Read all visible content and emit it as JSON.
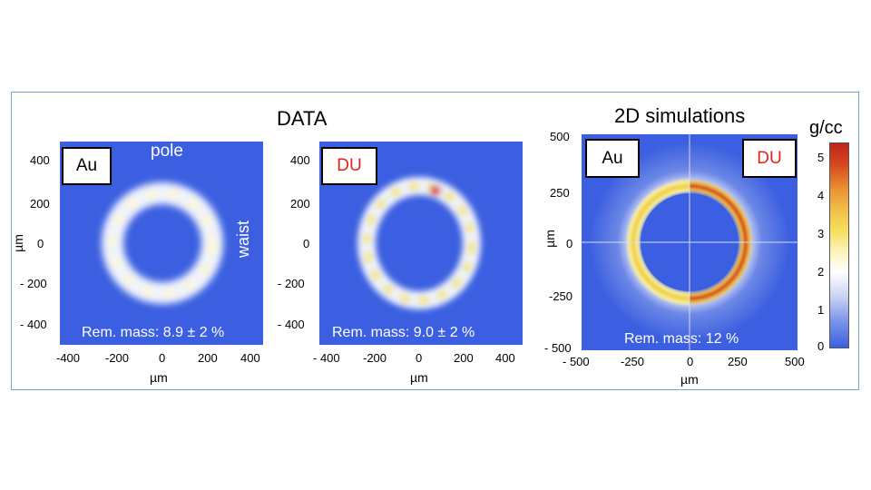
{
  "titles": {
    "data": "DATA",
    "sim": "2D simulations",
    "colorbar_unit": "g/cc"
  },
  "axis_unit": "µm",
  "panel1": {
    "material": "Au",
    "top_note": "pole",
    "side_note": "waist",
    "rem_mass": "Rem. mass: 8.9 ± 2 %",
    "y_ticks": [
      "400",
      "200",
      "0",
      "- 200",
      "- 400"
    ],
    "x_ticks": [
      "-400",
      "-200",
      "0",
      "200",
      "400"
    ]
  },
  "panel2": {
    "material": "DU",
    "rem_mass": "Rem. mass: 9.0 ± 2 %",
    "y_ticks": [
      "400",
      "200",
      "0",
      "- 200",
      "- 400"
    ],
    "x_ticks": [
      "- 400",
      "-200",
      "0",
      "200",
      "400"
    ]
  },
  "panel3": {
    "left_material": "Au",
    "right_material": "DU",
    "rem_mass": "Rem. mass: 12 %",
    "y_ticks": [
      "500",
      "250",
      "0",
      "-250",
      "- 500"
    ],
    "x_ticks": [
      "- 500",
      "-250",
      "0",
      "250",
      "500"
    ]
  },
  "colorbar": {
    "ticks": [
      "5",
      "4",
      "3",
      "2",
      "1",
      "0"
    ],
    "min": 0,
    "max": 5.4
  },
  "colors": {
    "background_blue": "#3b5fe0",
    "frame": "#7f9fd6",
    "du_label": "#e8211b"
  }
}
